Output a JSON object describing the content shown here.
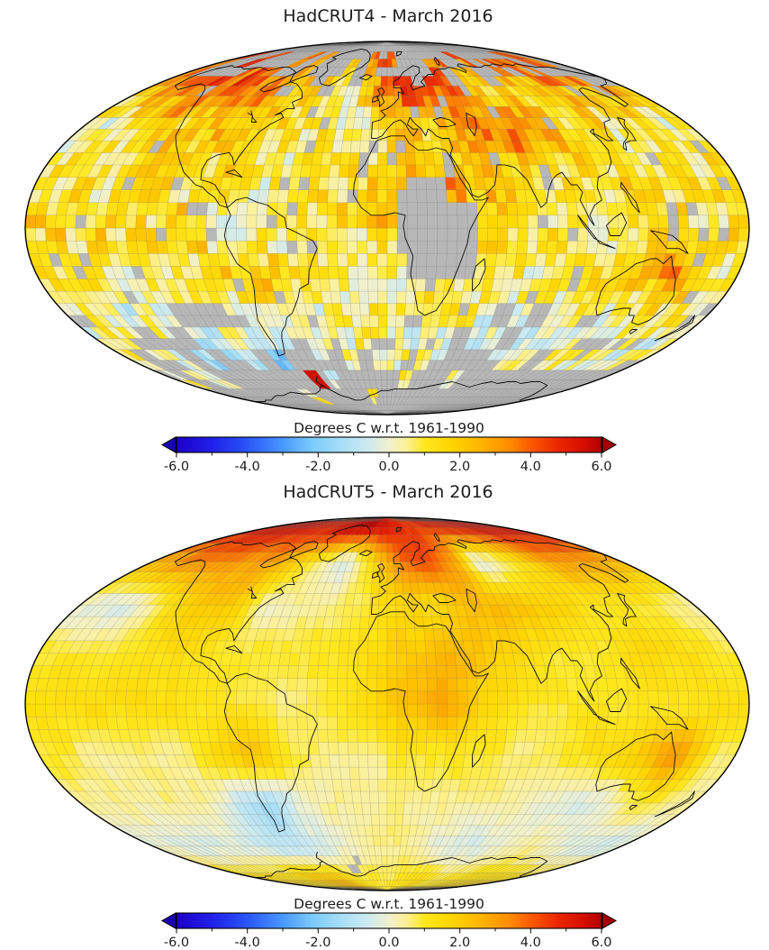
{
  "figure": {
    "maps": [
      {
        "title": "HadCRUT4 - March 2016"
      },
      {
        "title": "HadCRUT5 - March 2016"
      }
    ]
  },
  "colorbar": {
    "label": "Degrees C w.r.t. 1961-1990",
    "tick_labels": [
      "-6.0",
      "-4.0",
      "-2.0",
      "0.0",
      "2.0",
      "4.0",
      "6.0"
    ],
    "tick_values": [
      -6,
      -4,
      -2,
      0,
      2,
      4,
      6
    ],
    "minor_tick_values": [
      -5,
      -3,
      -1,
      1,
      3,
      5
    ],
    "range": [
      -6,
      6
    ],
    "stops": [
      [
        -6.0,
        "#1e00c8"
      ],
      [
        -5.0,
        "#2020e8"
      ],
      [
        -4.0,
        "#2a55f7"
      ],
      [
        -3.0,
        "#4898ff"
      ],
      [
        -2.2,
        "#79c9fb"
      ],
      [
        -1.4,
        "#a5ddf6"
      ],
      [
        -0.6,
        "#cdeaf0"
      ],
      [
        0.0,
        "#f0f0cd"
      ],
      [
        0.5,
        "#fcf096"
      ],
      [
        1.0,
        "#ffe81e"
      ],
      [
        1.8,
        "#ffd400"
      ],
      [
        2.6,
        "#ffb400"
      ],
      [
        3.4,
        "#ff8c00"
      ],
      [
        4.0,
        "#fc5a00"
      ],
      [
        4.8,
        "#ea2500"
      ],
      [
        5.5,
        "#d30f00"
      ],
      [
        6.0,
        "#b40000"
      ]
    ],
    "arrow_left_color": "#1a00b4",
    "arrow_right_color": "#a50000",
    "missing_color": "#b7b7b7"
  },
  "chart_data": [
    {
      "type": "heatmap",
      "title": "HadCRUT4 - March 2016",
      "projection": "mollweide",
      "cell_size_deg": 5,
      "units": "Degrees C w.r.t. 1961-1990",
      "value_range": [
        -6,
        6
      ],
      "missing_color_meaning": "gray cells = no data",
      "grid": {
        "lon_centers": [
          -170,
          -150,
          -130,
          -110,
          -90,
          -70,
          -50,
          -30,
          -10,
          10,
          30,
          50,
          70,
          90,
          110,
          130,
          150,
          170
        ],
        "lat_centers": [
          80,
          60,
          40,
          20,
          0,
          -20,
          -40,
          -60,
          -80
        ],
        "values": [
          [
            4.0,
            4.0,
            4.0,
            4.0,
            4.0,
            4.0,
            4.0,
            4.0,
            4.0,
            4.0,
            4.0,
            4.0,
            4.0,
            4.0,
            4.0,
            4.0,
            4.0,
            4.0
          ],
          [
            2.0,
            4.0,
            4.5,
            3.5,
            3.0,
            2.0,
            1.0,
            0.5,
            2.0,
            4.5,
            5.0,
            3.5,
            1.0,
            1.0,
            2.0,
            3.0,
            3.0,
            2.5
          ],
          [
            0.0,
            0.5,
            1.5,
            2.0,
            2.0,
            1.5,
            1.0,
            0.5,
            1.0,
            1.5,
            2.0,
            3.0,
            3.5,
            2.5,
            1.5,
            1.0,
            1.0,
            0.5
          ],
          [
            1.0,
            1.0,
            1.0,
            1.5,
            1.0,
            1.0,
            1.0,
            1.0,
            1.5,
            2.0,
            2.5,
            2.5,
            2.0,
            1.0,
            1.0,
            1.5,
            1.5,
            1.0
          ],
          [
            1.5,
            1.5,
            1.5,
            1.5,
            1.0,
            0.5,
            0.5,
            1.0,
            1.5,
            2.0,
            2.0,
            1.5,
            1.0,
            1.0,
            1.0,
            1.0,
            1.0,
            1.5
          ],
          [
            1.0,
            0.5,
            0.5,
            0.5,
            1.5,
            2.0,
            1.0,
            0.5,
            0.5,
            1.0,
            1.0,
            1.0,
            0.5,
            1.0,
            1.5,
            2.0,
            3.0,
            0.5
          ],
          [
            0.5,
            0.0,
            0.0,
            0.0,
            -0.5,
            -1.0,
            0.0,
            0.5,
            0.5,
            0.5,
            0.5,
            0.0,
            0.0,
            0.0,
            -0.5,
            0.0,
            0.5,
            0.5
          ],
          [
            0.0,
            -0.5,
            -1.0,
            -0.5,
            -1.0,
            -1.0,
            -0.5,
            0.0,
            0.0,
            0.5,
            0.0,
            -0.5,
            -0.5,
            0.0,
            0.0,
            0.0,
            -0.5,
            -0.5
          ],
          [
            1.0,
            1.0,
            1.0,
            1.0,
            2.0,
            3.0,
            1.0,
            1.0,
            1.0,
            1.0,
            1.0,
            1.0,
            1.0,
            1.0,
            1.0,
            1.0,
            1.0,
            1.0
          ]
        ]
      },
      "texture": {
        "block_noise": 0.75,
        "cell_noise": 0.85
      },
      "missing_rules": [
        {
          "lat": [
            82.5,
            90
          ],
          "p": 1.0
        },
        {
          "lat": [
            77.5,
            82.5
          ],
          "p": 0.85
        },
        {
          "lat": [
            67.5,
            77.5
          ],
          "p": 0.55
        },
        {
          "lat": [
            60,
            67.5
          ],
          "p": 0.18
        },
        {
          "lat": [
            -17.5,
            17.5
          ],
          "lon": [
            7.5,
            42.5
          ],
          "p": 0.82
        },
        {
          "lat": [
            15,
            30
          ],
          "lon": [
            -12.5,
            32.5
          ],
          "p": 0.45
        },
        {
          "lat": [
            12,
            28
          ],
          "lon": [
            42.5,
            60
          ],
          "p": 0.3
        },
        {
          "lat": [
            -12.5,
            2.5
          ],
          "lon": [
            -75,
            -55
          ],
          "p": 0.28
        },
        {
          "lat": [
            -30,
            -20
          ],
          "lon": [
            117.5,
            135
          ],
          "p": 0.4
        },
        {
          "lat": [
            -90,
            -72.5
          ],
          "p": 0.97
        },
        {
          "lat": [
            -72.5,
            -62.5
          ],
          "p": 0.85
        },
        {
          "lat": [
            -62.5,
            -57.5
          ],
          "p": 0.55
        },
        {
          "lat": [
            -57.5,
            -47.5
          ],
          "p": 0.33
        },
        {
          "lat": [
            -47.5,
            -37.5
          ],
          "p": 0.15
        },
        {
          "lat": [
            -50,
            -30
          ],
          "lon": [
            -150,
            -90
          ],
          "p": 0.3
        },
        {
          "lat": [
            -50,
            -30
          ],
          "lon": [
            60,
            110
          ],
          "p": 0.2
        },
        {
          "p": 0.05,
          "scale": "cell"
        }
      ],
      "force_regions": [
        {
          "lat": [
            -70,
            -62
          ],
          "lon": [
            -64,
            -56
          ],
          "value": 5.5
        }
      ]
    },
    {
      "type": "heatmap",
      "title": "HadCRUT5 - March 2016",
      "projection": "mollweide",
      "cell_size_deg": 5,
      "units": "Degrees C w.r.t. 1961-1990",
      "value_range": [
        -6,
        6
      ],
      "missing_color_meaning": "gray cells = no data (small Weddell Sea patch only)",
      "grid": {
        "lon_centers": [
          -170,
          -150,
          -130,
          -110,
          -90,
          -70,
          -50,
          -30,
          -10,
          10,
          30,
          50,
          70,
          90,
          110,
          130,
          150,
          170
        ],
        "lat_centers": [
          80,
          60,
          40,
          20,
          0,
          -20,
          -40,
          -60,
          -80
        ],
        "values": [
          [
            5.5,
            5.5,
            5.5,
            5.0,
            5.0,
            5.5,
            6.0,
            6.0,
            5.5,
            5.0,
            4.5,
            4.5,
            5.0,
            5.0,
            5.0,
            5.5,
            5.5,
            5.5
          ],
          [
            2.5,
            3.5,
            3.5,
            3.0,
            3.0,
            2.0,
            0.5,
            -0.5,
            1.5,
            3.5,
            4.5,
            3.0,
            -0.5,
            0.5,
            2.0,
            3.0,
            3.0,
            2.5
          ],
          [
            -0.5,
            -0.5,
            1.0,
            2.0,
            2.0,
            0.0,
            0.5,
            0.5,
            1.0,
            1.5,
            1.5,
            2.5,
            2.5,
            2.0,
            1.5,
            1.0,
            1.0,
            0.5
          ],
          [
            1.0,
            1.0,
            1.0,
            1.5,
            1.0,
            1.0,
            1.0,
            1.0,
            1.5,
            2.0,
            2.5,
            2.0,
            1.5,
            1.0,
            1.0,
            1.5,
            1.5,
            1.0
          ],
          [
            1.5,
            1.5,
            1.5,
            1.5,
            1.0,
            1.0,
            0.5,
            1.0,
            1.5,
            2.5,
            3.0,
            1.5,
            1.0,
            1.0,
            1.0,
            1.0,
            1.0,
            1.5
          ],
          [
            1.0,
            0.5,
            0.5,
            0.5,
            1.5,
            2.5,
            1.0,
            0.5,
            0.5,
            1.0,
            1.0,
            1.0,
            0.5,
            1.0,
            1.5,
            2.0,
            3.5,
            0.5
          ],
          [
            0.5,
            0.5,
            0.5,
            0.5,
            -0.5,
            -1.5,
            0.0,
            0.5,
            0.5,
            0.5,
            0.5,
            0.5,
            0.5,
            0.0,
            -0.5,
            0.0,
            1.0,
            0.5
          ],
          [
            0.0,
            -0.5,
            -0.5,
            -0.5,
            -1.0,
            -1.0,
            -0.5,
            0.0,
            0.5,
            0.5,
            0.0,
            -0.5,
            -0.5,
            0.0,
            0.5,
            0.0,
            -0.5,
            -0.5
          ],
          [
            1.5,
            1.5,
            1.5,
            2.0,
            2.5,
            2.5,
            1.5,
            1.0,
            1.0,
            1.0,
            1.5,
            1.5,
            1.0,
            1.0,
            1.5,
            1.5,
            1.5,
            1.5
          ]
        ]
      },
      "texture": {
        "block_noise": 0.15,
        "cell_noise": 0.1
      },
      "missing_rules": [
        {
          "lat": [
            -76,
            -66
          ],
          "lon": [
            -55,
            -25
          ],
          "p": 0.55
        }
      ],
      "force_regions": []
    }
  ]
}
